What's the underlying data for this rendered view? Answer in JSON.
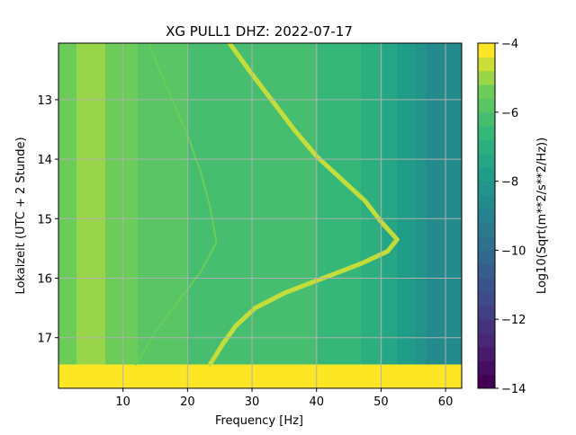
{
  "chart_data": {
    "type": "heatmap",
    "title": "XG PULL1  DHZ: 2022-07-17",
    "xlabel": "Frequency [Hz]",
    "ylabel": "Lokalzeit (UTC + 2 Stunde)",
    "xlim": [
      0,
      62.5
    ],
    "ylim": [
      17.85,
      12.05
    ],
    "xticks": [
      10,
      20,
      30,
      40,
      50,
      60
    ],
    "yticks": [
      13,
      14,
      15,
      16,
      17
    ],
    "grid": true,
    "colormap": "viridis",
    "colorbar": {
      "label": "Log10(Sqrt(m**2/s**2/Hz))",
      "min": -14,
      "max": -4,
      "ticks": [
        -14,
        -12,
        -10,
        -8,
        -6,
        -4
      ],
      "levels": 25
    },
    "background_level_by_frequency": {
      "x": [
        0,
        5,
        10,
        20,
        30,
        40,
        45,
        50,
        55,
        58,
        62.5
      ],
      "values": [
        -5.5,
        -5.0,
        -5.5,
        -6.0,
        -6.2,
        -6.4,
        -6.5,
        -7.2,
        -8.0,
        -8.6,
        -8.8
      ]
    },
    "gap_band": {
      "time_range": [
        17.45,
        17.85
      ],
      "value": -4
    },
    "tremor_line": {
      "name": "",
      "value": -4.8,
      "points": [
        {
          "x": 26.5,
          "t": 12.05
        },
        {
          "x": 29.5,
          "t": 12.5
        },
        {
          "x": 33.0,
          "t": 13.0
        },
        {
          "x": 36.5,
          "t": 13.5
        },
        {
          "x": 40.0,
          "t": 13.95
        },
        {
          "x": 44.0,
          "t": 14.35
        },
        {
          "x": 47.5,
          "t": 14.7
        },
        {
          "x": 50.0,
          "t": 15.05
        },
        {
          "x": 52.5,
          "t": 15.35
        },
        {
          "x": 51.0,
          "t": 15.55
        },
        {
          "x": 47.0,
          "t": 15.75
        },
        {
          "x": 41.0,
          "t": 16.0
        },
        {
          "x": 35.0,
          "t": 16.25
        },
        {
          "x": 30.5,
          "t": 16.5
        },
        {
          "x": 27.5,
          "t": 16.8
        },
        {
          "x": 25.5,
          "t": 17.1
        },
        {
          "x": 23.5,
          "t": 17.45
        }
      ]
    },
    "faint_line": {
      "name": "",
      "value": -5.4,
      "points": [
        {
          "x": 14.0,
          "t": 12.05
        },
        {
          "x": 16.0,
          "t": 12.6
        },
        {
          "x": 18.0,
          "t": 13.1
        },
        {
          "x": 20.0,
          "t": 13.6
        },
        {
          "x": 22.0,
          "t": 14.2
        },
        {
          "x": 23.5,
          "t": 14.8
        },
        {
          "x": 24.5,
          "t": 15.4
        },
        {
          "x": 22.0,
          "t": 15.9
        },
        {
          "x": 18.5,
          "t": 16.4
        },
        {
          "x": 15.0,
          "t": 16.9
        },
        {
          "x": 12.0,
          "t": 17.45
        }
      ]
    }
  }
}
